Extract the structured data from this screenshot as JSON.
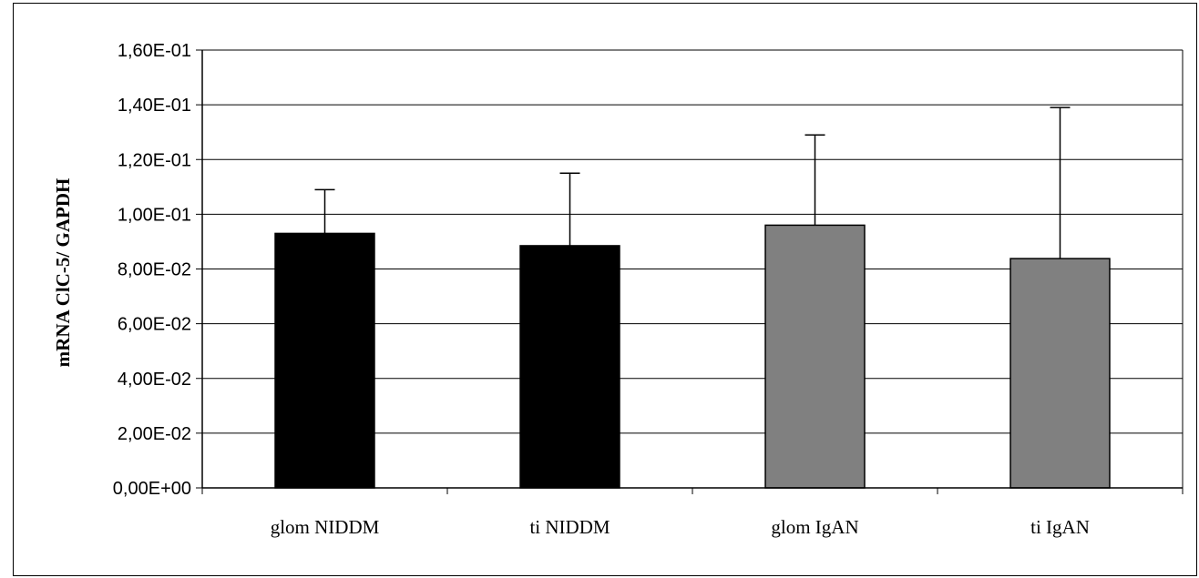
{
  "chart_data": {
    "type": "bar",
    "title": "",
    "xlabel": "",
    "ylabel": "mRNA ClC-5/ GAPDH",
    "categories": [
      "glom NIDDM",
      "ti NIDDM",
      "glom IgAN",
      "ti IgAN"
    ],
    "values": [
      0.093,
      0.0885,
      0.096,
      0.0838
    ],
    "error_upper": [
      0.109,
      0.115,
      0.129,
      0.139
    ],
    "colors": [
      "#000000",
      "#000000",
      "#808080",
      "#808080"
    ],
    "ylim": [
      0,
      0.16
    ],
    "yticks": [
      0,
      0.02,
      0.04,
      0.06,
      0.08,
      0.1,
      0.12,
      0.14,
      0.16
    ],
    "ytick_labels": [
      "0,00E+00",
      "2,00E-02",
      "4,00E-02",
      "6,00E-02",
      "8,00E-02",
      "1,00E-01",
      "1,20E-01",
      "1,40E-01",
      "1,60E-01"
    ],
    "grid": true,
    "legend": "none"
  }
}
